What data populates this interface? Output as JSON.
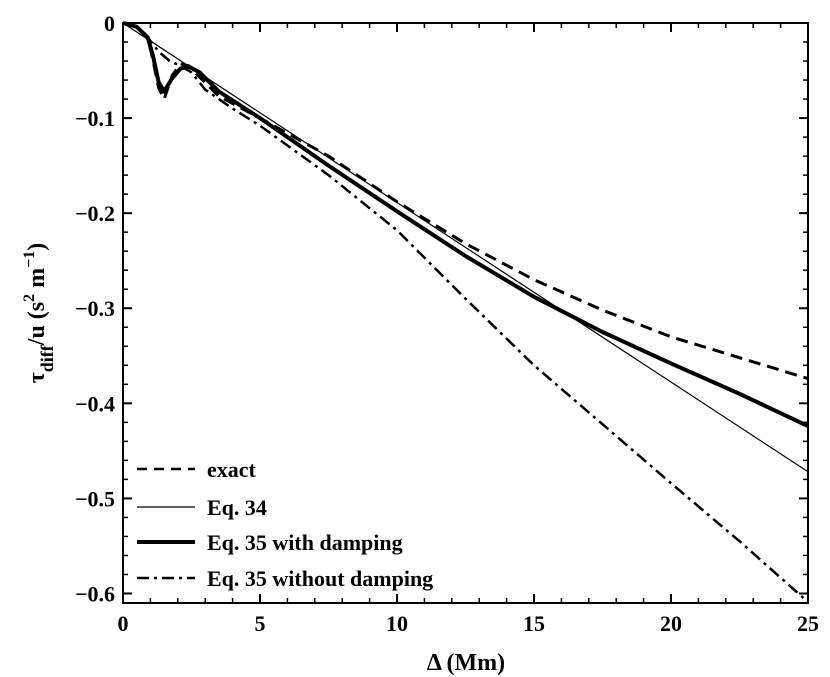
{
  "chart_data": {
    "type": "line",
    "xlabel": "Δ  (Mm)",
    "ylabel_main": "τ",
    "ylabel_sub": "diff",
    "ylabel_rest": "/u  (s",
    "ylabel_sup1": "2",
    "ylabel_m": " m",
    "ylabel_sup2": "−1",
    "ylabel_close": ")",
    "xlim": [
      0,
      25
    ],
    "ylim": [
      -0.61,
      0
    ],
    "x_ticks": [
      0,
      5,
      10,
      15,
      20,
      25
    ],
    "x_tick_labels": [
      "0",
      "5",
      "10",
      "15",
      "20",
      "25"
    ],
    "y_ticks": [
      0,
      -0.1,
      -0.2,
      -0.3,
      -0.4,
      -0.5,
      -0.6
    ],
    "y_tick_labels": [
      "0",
      "−0.1",
      "−0.2",
      "−0.3",
      "−0.4",
      "−0.5",
      "−0.6"
    ],
    "legend_position": "bottom-left",
    "series": [
      {
        "name": "exact",
        "style": "dashed",
        "x": [
          0,
          0.5,
          0.9,
          1.1,
          1.3,
          1.5,
          1.8,
          2.1,
          2.4,
          2.8,
          3.5,
          5,
          7.5,
          10,
          12.5,
          15,
          17.5,
          20,
          22.5,
          25
        ],
        "y": [
          0,
          -0.004,
          -0.015,
          -0.04,
          -0.068,
          -0.08,
          -0.055,
          -0.043,
          -0.045,
          -0.057,
          -0.077,
          -0.1,
          -0.14,
          -0.188,
          -0.232,
          -0.27,
          -0.302,
          -0.33,
          -0.352,
          -0.374
        ]
      },
      {
        "name": "Eq. 34",
        "style": "thin",
        "x": [
          0,
          25
        ],
        "y": [
          0,
          -0.472
        ]
      },
      {
        "name": "Eq. 35 with damping",
        "style": "thick",
        "x": [
          0,
          0.5,
          0.9,
          1.1,
          1.3,
          1.5,
          1.8,
          2.1,
          2.4,
          2.8,
          3.5,
          5,
          7.5,
          10,
          12.5,
          15,
          17.5,
          20,
          22.5,
          25
        ],
        "y": [
          0,
          -0.004,
          -0.015,
          -0.035,
          -0.062,
          -0.072,
          -0.058,
          -0.048,
          -0.046,
          -0.052,
          -0.072,
          -0.1,
          -0.15,
          -0.198,
          -0.245,
          -0.288,
          -0.325,
          -0.358,
          -0.39,
          -0.424
        ]
      },
      {
        "name": "Eq. 35 without damping",
        "style": "dashdot",
        "x": [
          0,
          0.5,
          0.9,
          1.3,
          1.7,
          2.1,
          2.5,
          3,
          4,
          5,
          7.5,
          10,
          12.5,
          15,
          17.5,
          20,
          22.5,
          25
        ],
        "y": [
          0,
          -0.004,
          -0.015,
          -0.03,
          -0.04,
          -0.045,
          -0.052,
          -0.07,
          -0.09,
          -0.108,
          -0.16,
          -0.218,
          -0.29,
          -0.36,
          -0.422,
          -0.484,
          -0.545,
          -0.609
        ]
      }
    ]
  }
}
